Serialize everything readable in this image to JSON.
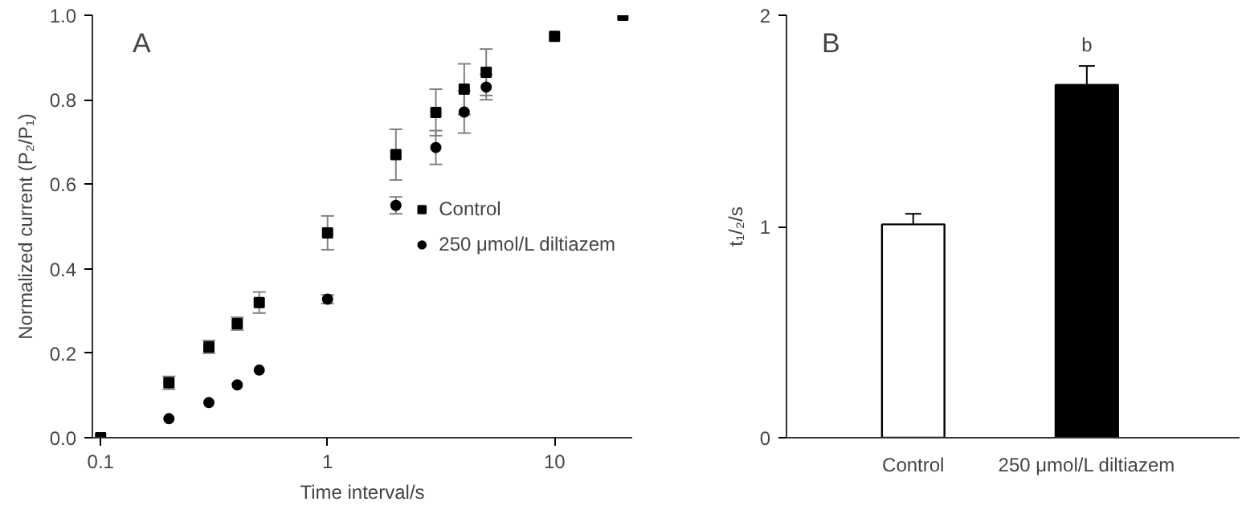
{
  "chart_data": [
    {
      "type": "scatter",
      "title": "A",
      "xlabel": "Time interval/s",
      "ylabel": "Normalized current (P₂/P₁)",
      "log": "x",
      "xlim": [
        0.092,
        22
      ],
      "xticks": [
        0.1,
        1,
        10
      ],
      "ylim": [
        0,
        1
      ],
      "yticks": [
        {
          "value": 0,
          "label": "0.0"
        },
        {
          "value": 0.2,
          "label": "0.2"
        },
        {
          "value": 0.4,
          "label": "0.4"
        },
        {
          "value": 0.6,
          "label": "0.6"
        },
        {
          "value": 0.8,
          "label": "0.8"
        },
        {
          "value": 1,
          "label": "1.0"
        }
      ],
      "legend": "right",
      "grid": false,
      "series": [
        {
          "name": "Control",
          "color": "#000000",
          "marker": "square",
          "x": [
            0.1,
            0.2,
            0.3,
            0.4,
            0.5,
            1,
            2,
            3,
            4,
            5,
            10,
            20
          ],
          "values": [
            0,
            0.13,
            0.215,
            0.27,
            0.32,
            0.485,
            0.67,
            0.77,
            0.825,
            0.865,
            0.95,
            1.0
          ],
          "errors": [
            null,
            0.015,
            0.015,
            0.015,
            0.025,
            0.04,
            0.06,
            0.055,
            0.06,
            0.055,
            null,
            null
          ]
        },
        {
          "name": "250 μmol/L diltiazem",
          "color": "#000000",
          "marker": "circle",
          "x": [
            0.2,
            0.3,
            0.4,
            0.5,
            1,
            2,
            3,
            4,
            5
          ],
          "values": [
            0.045,
            0.083,
            0.125,
            0.16,
            0.328,
            0.55,
            0.687,
            0.771,
            0.83
          ],
          "errors": [
            null,
            null,
            null,
            null,
            0.01,
            0.02,
            0.04,
            0.05,
            0.03
          ]
        }
      ]
    },
    {
      "type": "bar",
      "title": "B",
      "ylabel": "t₁/₂/s",
      "categories": [
        "Control",
        "250 μmol/L diltiazem"
      ],
      "values": [
        1.01,
        1.67
      ],
      "errors": [
        0.05,
        0.09
      ],
      "colors": [
        "#ffffff",
        "#000000"
      ],
      "ylim": [
        0,
        2
      ],
      "yticks": [
        0,
        1,
        2
      ],
      "grid": false,
      "annotations": [
        {
          "text": "b",
          "x": "250 μmol/L diltiazem",
          "y": 1.76
        }
      ]
    }
  ]
}
